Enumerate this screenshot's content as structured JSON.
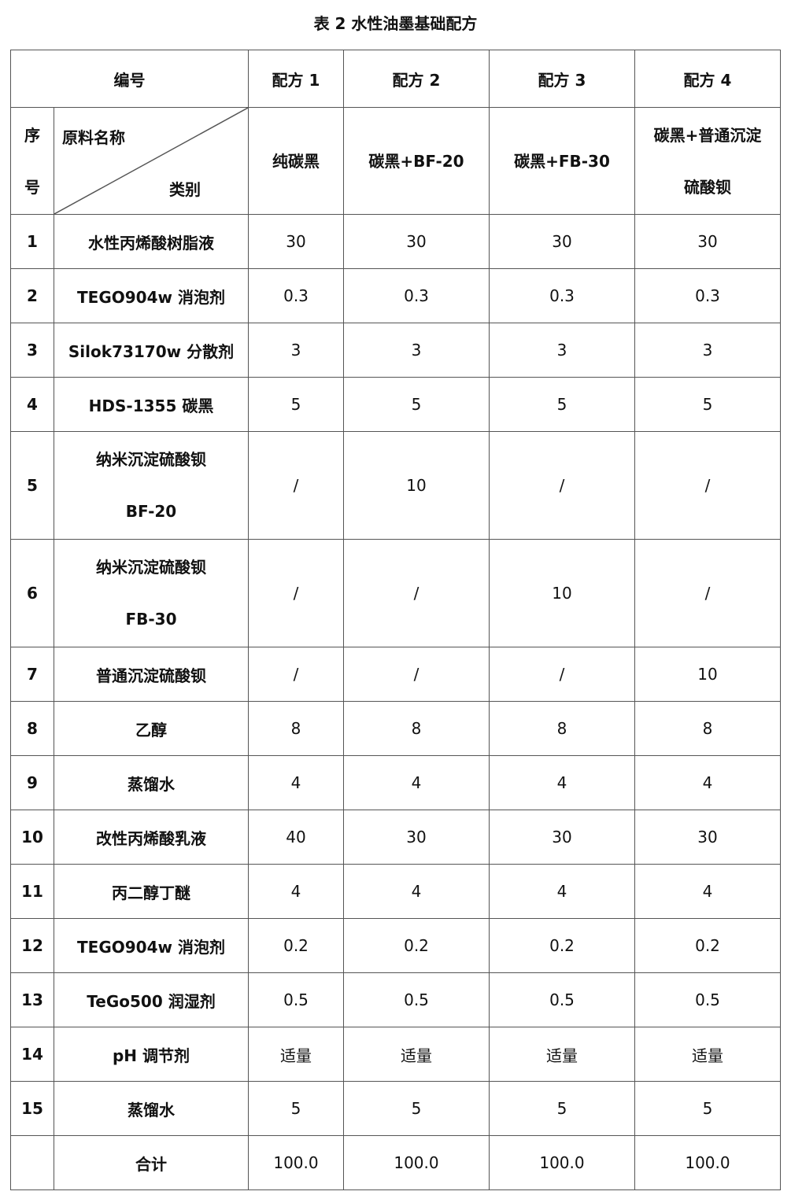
{
  "title": "表 2 水性油墨基础配方",
  "header": {
    "id_label": "编号",
    "formulas": [
      "配方 1",
      "配方 2",
      "配方 3",
      "配方 4"
    ],
    "seq_label_1": "序",
    "seq_label_2": "号",
    "material_label": "原料名称",
    "category_label": "类别",
    "categories": [
      {
        "line1": "纯碳黑",
        "line2": ""
      },
      {
        "line1": "碳黑+BF-20",
        "line2": ""
      },
      {
        "line1": "碳黑+FB-30",
        "line2": ""
      },
      {
        "line1": "碳黑+普通沉淀",
        "line2": "硫酸钡"
      }
    ]
  },
  "rows": [
    {
      "no": "1",
      "name": "水性丙烯酸树脂液",
      "name2": "",
      "values": [
        "30",
        "30",
        "30",
        "30"
      ]
    },
    {
      "no": "2",
      "name": "TEGO904w 消泡剂",
      "name2": "",
      "values": [
        "0.3",
        "0.3",
        "0.3",
        "0.3"
      ]
    },
    {
      "no": "3",
      "name": "Silok73170w 分散剂",
      "name2": "",
      "values": [
        "3",
        "3",
        "3",
        "3"
      ]
    },
    {
      "no": "4",
      "name": "HDS-1355 碳黑",
      "name2": "",
      "values": [
        "5",
        "5",
        "5",
        "5"
      ]
    },
    {
      "no": "5",
      "name": "纳米沉淀硫酸钡",
      "name2": "BF-20",
      "values": [
        "/",
        "10",
        "/",
        "/"
      ]
    },
    {
      "no": "6",
      "name": "纳米沉淀硫酸钡",
      "name2": "FB-30",
      "values": [
        "/",
        "/",
        "10",
        "/"
      ]
    },
    {
      "no": "7",
      "name": "普通沉淀硫酸钡",
      "name2": "",
      "values": [
        "/",
        "/",
        "/",
        "10"
      ]
    },
    {
      "no": "8",
      "name": "乙醇",
      "name2": "",
      "values": [
        "8",
        "8",
        "8",
        "8"
      ]
    },
    {
      "no": "9",
      "name": "蒸馏水",
      "name2": "",
      "values": [
        "4",
        "4",
        "4",
        "4"
      ]
    },
    {
      "no": "10",
      "name": "改性丙烯酸乳液",
      "name2": "",
      "values": [
        "40",
        "30",
        "30",
        "30"
      ]
    },
    {
      "no": "11",
      "name": "丙二醇丁醚",
      "name2": "",
      "values": [
        "4",
        "4",
        "4",
        "4"
      ]
    },
    {
      "no": "12",
      "name": "TEGO904w 消泡剂",
      "name2": "",
      "values": [
        "0.2",
        "0.2",
        "0.2",
        "0.2"
      ]
    },
    {
      "no": "13",
      "name": "TeGo500 润湿剂",
      "name2": "",
      "values": [
        "0.5",
        "0.5",
        "0.5",
        "0.5"
      ]
    },
    {
      "no": "14",
      "name": "pH 调节剂",
      "name2": "",
      "values": [
        "适量",
        "适量",
        "适量",
        "适量"
      ]
    },
    {
      "no": "15",
      "name": "蒸馏水",
      "name2": "",
      "values": [
        "5",
        "5",
        "5",
        "5"
      ]
    }
  ],
  "total": {
    "label": "合计",
    "values": [
      "100.0",
      "100.0",
      "100.0",
      "100.0"
    ]
  }
}
